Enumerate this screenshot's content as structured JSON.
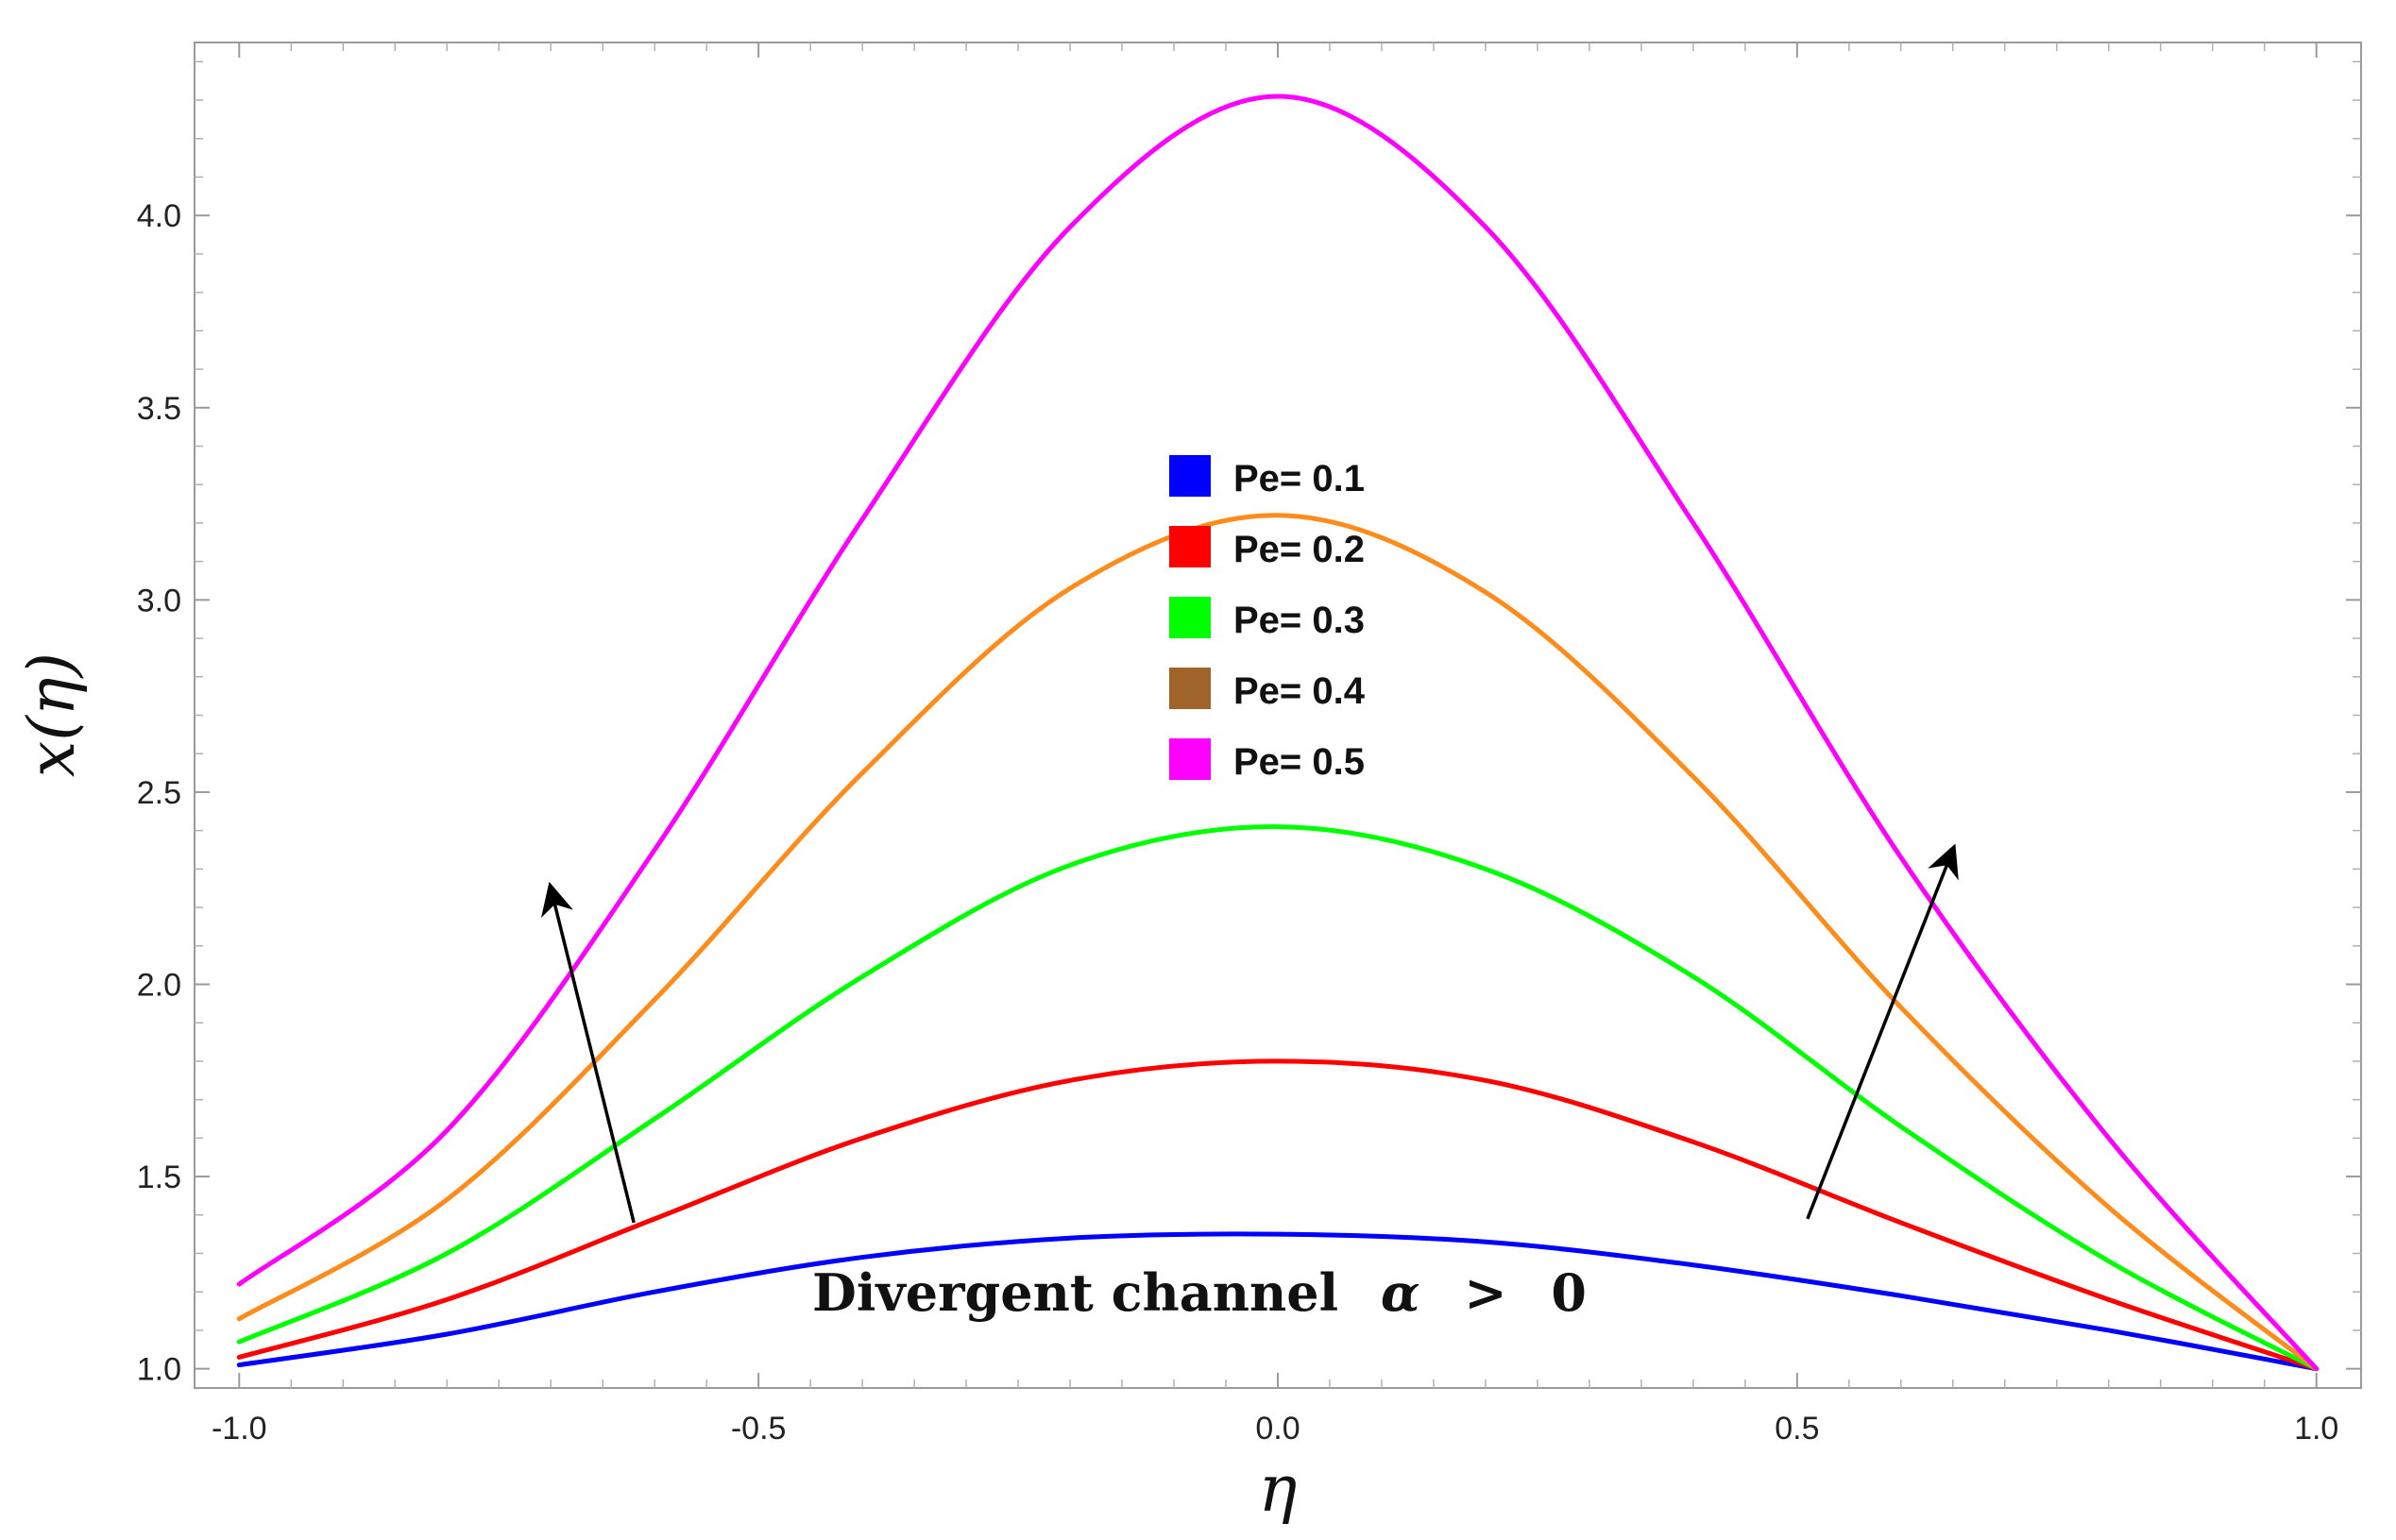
{
  "chart_data": {
    "type": "line",
    "title": "",
    "xlabel": "η",
    "ylabel": "x(η)",
    "xlim": [
      -1.0,
      1.0
    ],
    "ylim": [
      0.95,
      4.45
    ],
    "x_ticks": [
      -1.0,
      -0.5,
      0.0,
      0.5,
      1.0
    ],
    "x_tick_labels": [
      "-1.0",
      "-0.5",
      "0.0",
      "0.5",
      "1.0"
    ],
    "y_ticks": [
      1.0,
      1.5,
      2.0,
      2.5,
      3.0,
      3.5,
      4.0
    ],
    "y_tick_labels": [
      "1.0",
      "1.5",
      "2.0",
      "2.5",
      "3.0",
      "3.5",
      "4.0"
    ],
    "grid": false,
    "legend": {
      "placement": "center",
      "entries": [
        {
          "label": "Pe= 0.1",
          "color": "#0000ff"
        },
        {
          "label": "Pe= 0.2",
          "color": "#ff0000"
        },
        {
          "label": "Pe= 0.3",
          "color": "#00ff00"
        },
        {
          "label": "Pe= 0.4",
          "color": "#a0642a"
        },
        {
          "label": "Pe= 0.5",
          "color": "#ff00ff"
        }
      ]
    },
    "series": [
      {
        "color": "#0000ff",
        "points": [
          [
            -1.0,
            1.01
          ],
          [
            -0.8,
            1.09
          ],
          [
            -0.6,
            1.2
          ],
          [
            -0.4,
            1.29
          ],
          [
            -0.2,
            1.34
          ],
          [
            0.0,
            1.35
          ],
          [
            0.2,
            1.33
          ],
          [
            0.4,
            1.27
          ],
          [
            0.6,
            1.19
          ],
          [
            0.8,
            1.1
          ],
          [
            1.0,
            1.0
          ]
        ]
      },
      {
        "color": "#ff0000",
        "points": [
          [
            -1.0,
            1.03
          ],
          [
            -0.8,
            1.18
          ],
          [
            -0.6,
            1.39
          ],
          [
            -0.4,
            1.6
          ],
          [
            -0.2,
            1.75
          ],
          [
            0.0,
            1.8
          ],
          [
            0.2,
            1.75
          ],
          [
            0.4,
            1.59
          ],
          [
            0.6,
            1.38
          ],
          [
            0.8,
            1.18
          ],
          [
            1.0,
            1.0
          ]
        ]
      },
      {
        "color": "#00ff00",
        "points": [
          [
            -1.0,
            1.07
          ],
          [
            -0.8,
            1.3
          ],
          [
            -0.6,
            1.65
          ],
          [
            -0.4,
            2.02
          ],
          [
            -0.2,
            2.31
          ],
          [
            0.0,
            2.41
          ],
          [
            0.2,
            2.3
          ],
          [
            0.4,
            2.02
          ],
          [
            0.6,
            1.63
          ],
          [
            0.8,
            1.28
          ],
          [
            1.0,
            1.0
          ]
        ]
      },
      {
        "color": "#ff8c1a",
        "points": [
          [
            -1.0,
            1.13
          ],
          [
            -0.8,
            1.44
          ],
          [
            -0.6,
            1.96
          ],
          [
            -0.4,
            2.55
          ],
          [
            -0.2,
            3.03
          ],
          [
            0.0,
            3.22
          ],
          [
            0.2,
            3.02
          ],
          [
            0.4,
            2.54
          ],
          [
            0.6,
            1.94
          ],
          [
            0.8,
            1.42
          ],
          [
            1.0,
            1.0
          ]
        ]
      },
      {
        "color": "#ff00ff",
        "points": [
          [
            -1.0,
            1.22
          ],
          [
            -0.8,
            1.62
          ],
          [
            -0.6,
            2.35
          ],
          [
            -0.4,
            3.21
          ],
          [
            -0.2,
            3.97
          ],
          [
            0.0,
            4.31
          ],
          [
            0.2,
            3.97
          ],
          [
            0.4,
            3.2
          ],
          [
            0.6,
            2.33
          ],
          [
            0.8,
            1.6
          ],
          [
            1.0,
            1.0
          ]
        ]
      }
    ],
    "annotations": [
      {
        "kind": "arrow",
        "from": [
          -0.62,
          1.38
        ],
        "to": [
          -0.7,
          2.25
        ]
      },
      {
        "kind": "arrow",
        "from": [
          0.51,
          1.39
        ],
        "to": [
          0.65,
          2.35
        ]
      }
    ],
    "annotation_text": {
      "lead": "Divergent channel",
      "symbol": "α",
      "relation": ">",
      "value": "0"
    }
  }
}
